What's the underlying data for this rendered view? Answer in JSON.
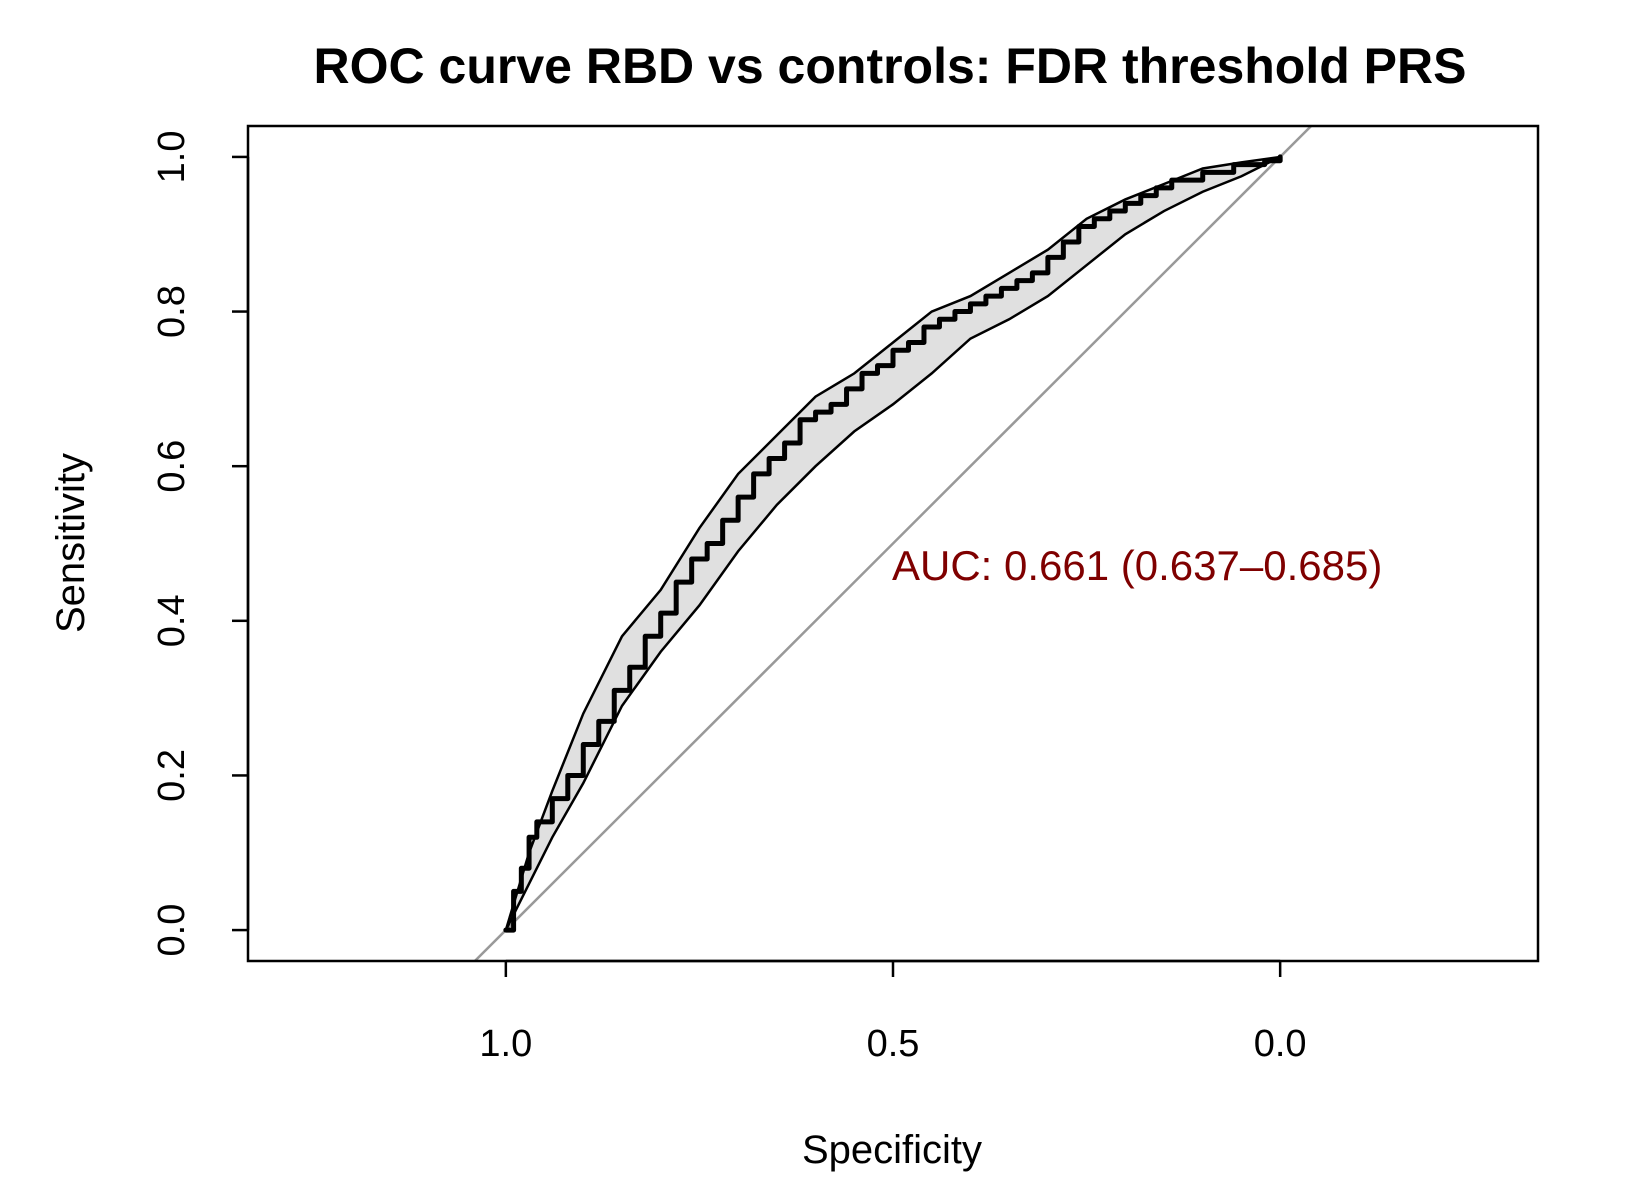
{
  "chart_data": {
    "type": "line",
    "title": "ROC curve RBD vs controls: FDR threshold PRS",
    "xlabel": "Specificity",
    "ylabel": "Sensitivity",
    "x_reversed": true,
    "xlim": [
      1.333,
      -0.333
    ],
    "ylim": [
      -0.04,
      1.04
    ],
    "x_ticks": [
      1.0,
      0.5,
      0.0
    ],
    "x_tick_labels": [
      "1.0",
      "0.5",
      "0.0"
    ],
    "y_ticks": [
      0.0,
      0.2,
      0.4,
      0.6,
      0.8,
      1.0
    ],
    "y_tick_labels": [
      "0.0",
      "0.2",
      "0.4",
      "0.6",
      "0.8",
      "1.0"
    ],
    "grid": false,
    "legend": "none",
    "annotation": {
      "text": "AUC: 0.661 (0.637–0.685)",
      "color": "#7f0000"
    },
    "colors": {
      "roc_line": "#000000",
      "ci_fill": "#e0e0e0",
      "ci_border": "#000000",
      "diagonal": "#999999",
      "annotation": "#7f0000"
    },
    "roc": {
      "specificity": [
        1.0,
        0.99,
        0.98,
        0.97,
        0.96,
        0.94,
        0.92,
        0.9,
        0.88,
        0.86,
        0.84,
        0.82,
        0.8,
        0.78,
        0.76,
        0.74,
        0.72,
        0.7,
        0.68,
        0.66,
        0.64,
        0.62,
        0.6,
        0.58,
        0.56,
        0.54,
        0.52,
        0.5,
        0.48,
        0.46,
        0.44,
        0.42,
        0.4,
        0.38,
        0.36,
        0.34,
        0.32,
        0.3,
        0.28,
        0.26,
        0.24,
        0.22,
        0.2,
        0.18,
        0.16,
        0.14,
        0.12,
        0.1,
        0.08,
        0.06,
        0.04,
        0.02,
        0.0
      ],
      "sensitivity": [
        0.0,
        0.05,
        0.08,
        0.12,
        0.14,
        0.17,
        0.2,
        0.24,
        0.27,
        0.31,
        0.34,
        0.38,
        0.41,
        0.45,
        0.48,
        0.5,
        0.53,
        0.56,
        0.59,
        0.61,
        0.63,
        0.66,
        0.67,
        0.68,
        0.7,
        0.72,
        0.73,
        0.75,
        0.76,
        0.78,
        0.79,
        0.8,
        0.81,
        0.82,
        0.83,
        0.84,
        0.85,
        0.87,
        0.89,
        0.91,
        0.92,
        0.93,
        0.94,
        0.95,
        0.96,
        0.97,
        0.97,
        0.98,
        0.98,
        0.99,
        0.99,
        0.995,
        1.0
      ]
    },
    "ci_band": {
      "specificity": [
        1.0,
        0.97,
        0.94,
        0.9,
        0.85,
        0.8,
        0.75,
        0.7,
        0.65,
        0.6,
        0.55,
        0.5,
        0.45,
        0.4,
        0.35,
        0.3,
        0.25,
        0.2,
        0.15,
        0.1,
        0.05,
        0.0
      ],
      "upper": [
        0.0,
        0.1,
        0.18,
        0.28,
        0.38,
        0.44,
        0.52,
        0.59,
        0.64,
        0.69,
        0.72,
        0.76,
        0.8,
        0.82,
        0.85,
        0.88,
        0.92,
        0.945,
        0.965,
        0.985,
        0.993,
        1.0
      ],
      "lower": [
        0.0,
        0.06,
        0.12,
        0.19,
        0.29,
        0.36,
        0.42,
        0.49,
        0.55,
        0.6,
        0.645,
        0.68,
        0.72,
        0.765,
        0.79,
        0.82,
        0.86,
        0.9,
        0.93,
        0.955,
        0.975,
        1.0
      ]
    }
  }
}
